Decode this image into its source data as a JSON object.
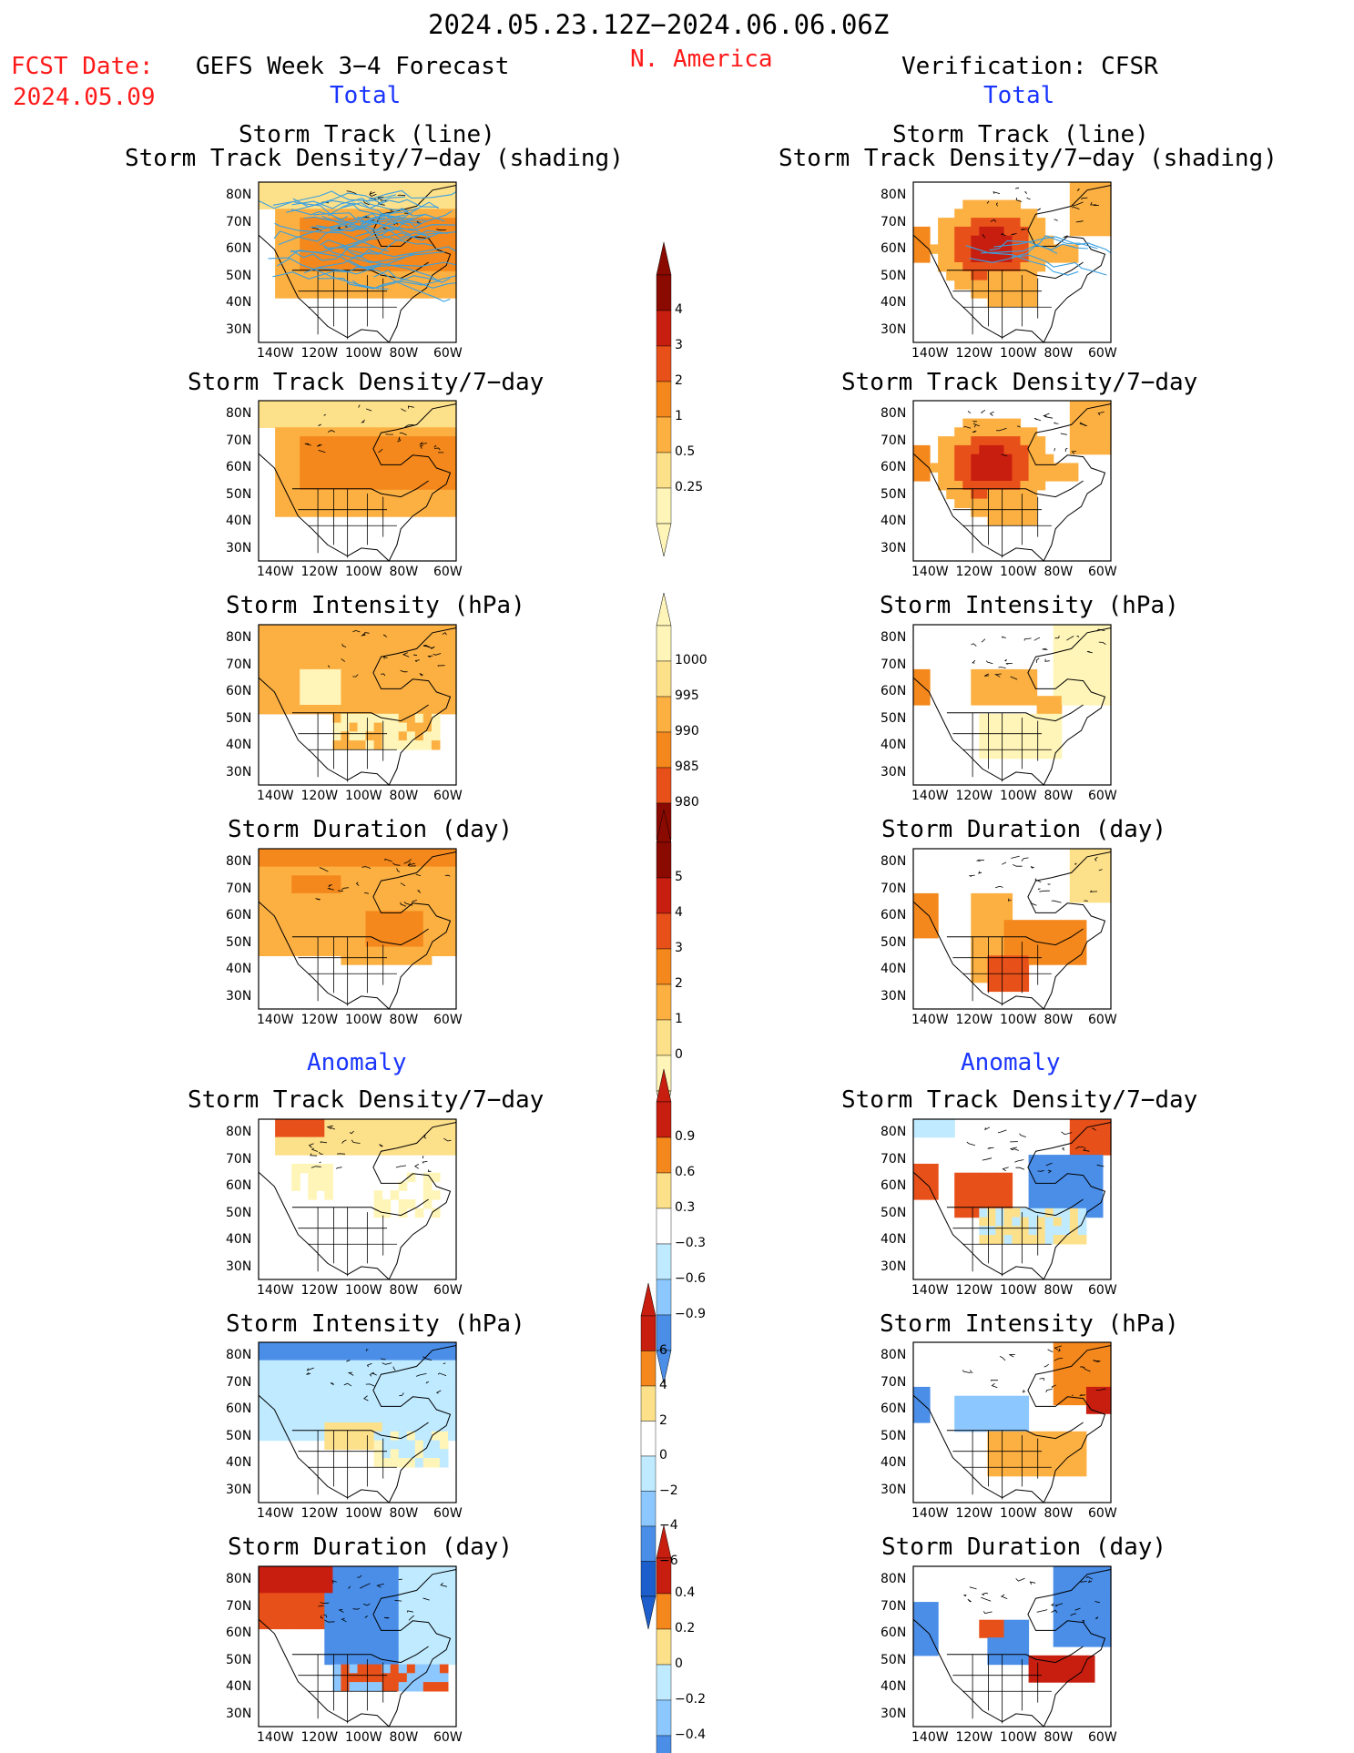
{
  "header": {
    "date_range": "2024.05.23.12Z−2024.06.06.06Z",
    "fcst_date_label": "FCST Date:",
    "fcst_date_value": "2024.05.09",
    "forecast_title": "GEFS Week 3−4 Forecast",
    "region": "N. America",
    "verification_title": "Verification: CFSR"
  },
  "sections": {
    "total_label": "Total",
    "anomaly_label": "Anomaly"
  },
  "panel_titles": {
    "track_line": "Storm Track (line)",
    "track_density_shading": "Storm Track Density/7−day (shading)",
    "track_density": "Storm Track Density/7−day",
    "intensity": "Storm Intensity (hPa)",
    "duration": "Storm Duration (day)"
  },
  "axis_labels": {
    "lat": [
      "80N",
      "70N",
      "60N",
      "50N",
      "40N",
      "30N"
    ],
    "lon": [
      "140W",
      "120W",
      "100W",
      "80W",
      "60W"
    ]
  },
  "colorbars": {
    "density_total": [
      "4",
      "3",
      "2",
      "1",
      "0.5",
      "0.25"
    ],
    "intensity_total": [
      "1000",
      "995",
      "990",
      "985",
      "980"
    ],
    "duration_total": [
      "5",
      "4",
      "3",
      "2",
      "1",
      "0"
    ],
    "density_anomaly": [
      "0.9",
      "0.6",
      "0.3",
      "−0.3",
      "−0.6",
      "−0.9"
    ],
    "intensity_anomaly": [
      "6",
      "4",
      "2",
      "0",
      "−2",
      "−4",
      "−6"
    ],
    "duration_anomaly": [
      "0.4",
      "0.2",
      "0",
      "−0.2",
      "−0.4"
    ]
  },
  "colors": {
    "title_red": "#ff1a1a",
    "section_blue": "#1a35ff",
    "track_line": "#3aa0e0",
    "warm_scale": [
      "#fff5b8",
      "#fde08a",
      "#fcb042",
      "#f4881c",
      "#e8501a",
      "#c81e10",
      "#8a0a00"
    ],
    "cool_scale": [
      "#ffffff",
      "#bfeaff",
      "#8cc8ff",
      "#4a8ee8",
      "#1c5fcc"
    ]
  }
}
